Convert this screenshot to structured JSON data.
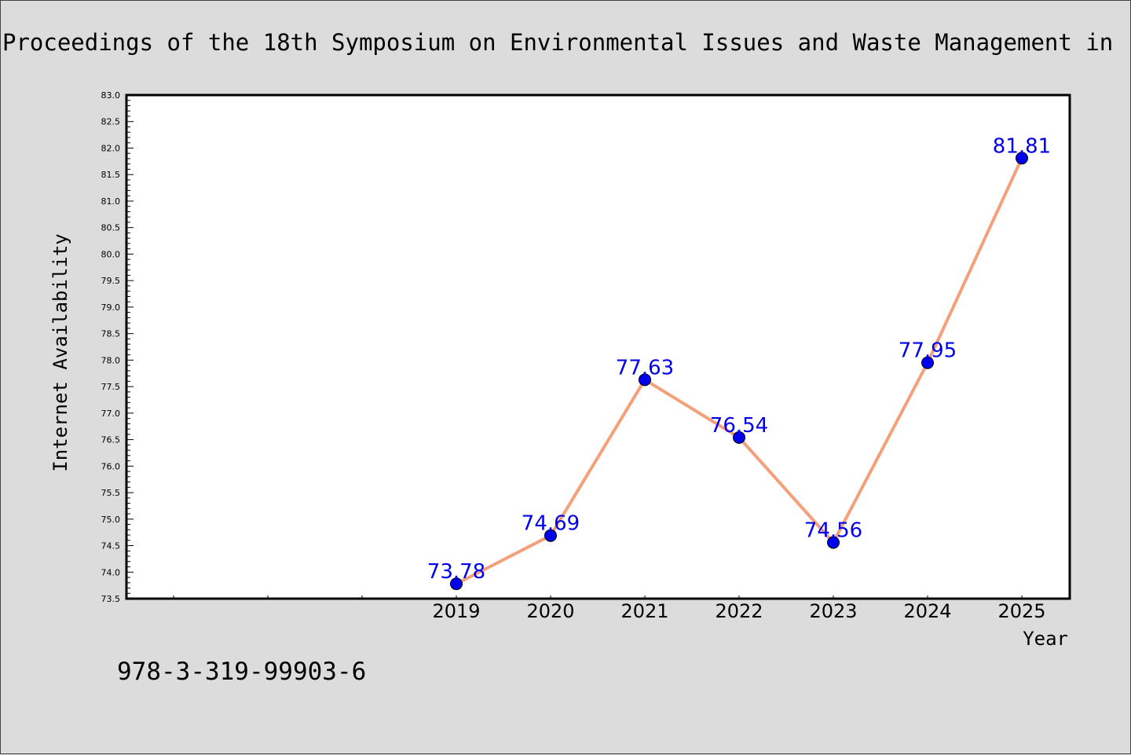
{
  "chart_data": {
    "type": "line",
    "title": "Proceedings of the 18th Symposium on Environmental Issues and Waste Management in",
    "xlabel": "Year",
    "ylabel": "Internet Availability",
    "categories": [
      "2019",
      "2020",
      "2021",
      "2022",
      "2023",
      "2024",
      "2025"
    ],
    "series": [
      {
        "values": [
          73.78,
          74.69,
          77.63,
          76.54,
          74.56,
          77.95,
          81.81
        ],
        "labels": [
          "73.78",
          "74.69",
          "77.63",
          "76.54",
          "74.56",
          "77.95",
          "81.81"
        ]
      }
    ],
    "ylim": [
      73.5,
      83.0
    ],
    "ytick_step": 0.5,
    "grid": false,
    "legend": "none",
    "colors": {
      "line": "#f4a07a",
      "marker": "#0000ee",
      "data_label": "#0000ee",
      "plot_background": "#ffffff",
      "page_background": "#dcdcdc"
    }
  },
  "footer": {
    "isbn": "978-3-319-99903-6"
  }
}
